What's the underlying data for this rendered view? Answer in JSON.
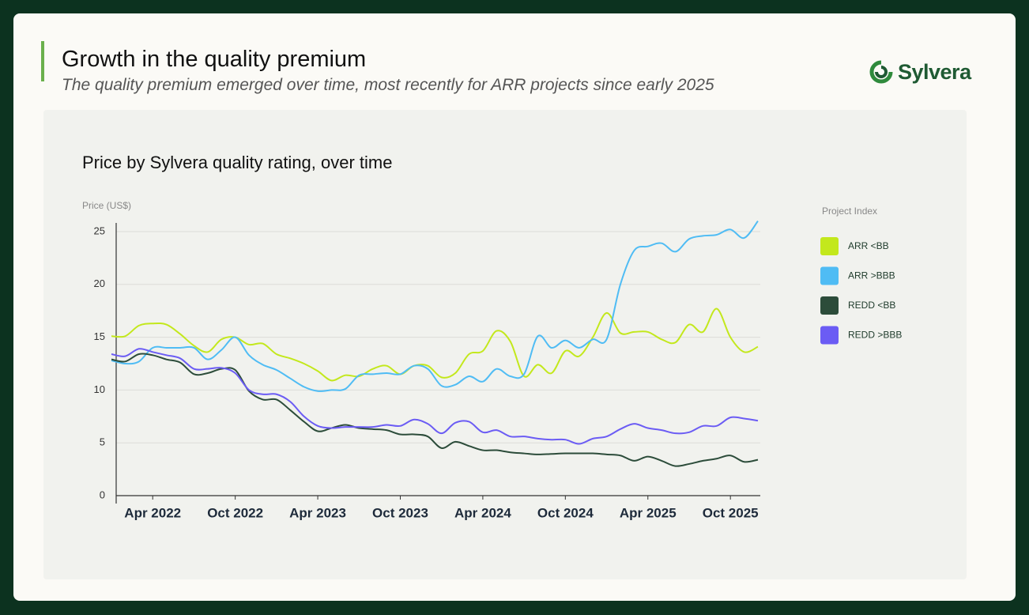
{
  "header": {
    "title": "Growth in the quality premium",
    "subtitle": "The quality premium emerged over time, most recently for ARR projects since early 2025",
    "logo": "Sylvera"
  },
  "chart_data": {
    "type": "line",
    "title": "Price by Sylvera quality rating, over time",
    "y_label": "Price (US$)",
    "legend_title": "Project Index",
    "x": [
      "2022-01",
      "2022-02",
      "2022-03",
      "2022-04",
      "2022-05",
      "2022-06",
      "2022-07",
      "2022-08",
      "2022-09",
      "2022-10",
      "2022-11",
      "2022-12",
      "2023-01",
      "2023-02",
      "2023-03",
      "2023-04",
      "2023-05",
      "2023-06",
      "2023-07",
      "2023-08",
      "2023-09",
      "2023-10",
      "2023-11",
      "2023-12",
      "2024-01",
      "2024-02",
      "2024-03",
      "2024-04",
      "2024-05",
      "2024-06",
      "2024-07",
      "2024-08",
      "2024-09",
      "2024-10",
      "2024-11",
      "2024-12",
      "2025-01",
      "2025-02",
      "2025-03",
      "2025-04",
      "2025-05",
      "2025-06",
      "2025-07",
      "2025-08",
      "2025-09",
      "2025-10",
      "2025-11",
      "2025-12"
    ],
    "xlim": [
      "2022-01",
      "2025-12"
    ],
    "xticks": [
      {
        "value": "2022-04",
        "label": "Apr 2022"
      },
      {
        "value": "2022-10",
        "label": "Oct 2022"
      },
      {
        "value": "2023-04",
        "label": "Apr 2023"
      },
      {
        "value": "2023-10",
        "label": "Oct 2023"
      },
      {
        "value": "2024-04",
        "label": "Apr 2024"
      },
      {
        "value": "2024-10",
        "label": "Oct 2024"
      },
      {
        "value": "2025-04",
        "label": "Apr 2025"
      },
      {
        "value": "2025-10",
        "label": "Oct 2025"
      }
    ],
    "ylim": [
      0,
      26
    ],
    "yticks": [
      0,
      5,
      10,
      15,
      20,
      25
    ],
    "grid": true,
    "series": [
      {
        "name": "ARR <BB",
        "color": "#c3e81c",
        "values": [
          15.1,
          15.1,
          16.1,
          16.3,
          16.2,
          15.3,
          14.2,
          13.6,
          14.8,
          15.0,
          14.3,
          14.4,
          13.4,
          13.0,
          12.5,
          11.8,
          10.9,
          11.4,
          11.3,
          12.0,
          12.3,
          11.5,
          12.3,
          12.3,
          11.2,
          11.6,
          13.4,
          13.7,
          15.6,
          14.6,
          11.3,
          12.4,
          11.6,
          13.7,
          13.2,
          15.0,
          17.3,
          15.4,
          15.5,
          15.5,
          14.8,
          14.5,
          16.2,
          15.5,
          17.7,
          15.0,
          13.6,
          14.1
        ]
      },
      {
        "name": "ARR >BBB",
        "color": "#4fbcf4",
        "values": [
          12.8,
          12.5,
          12.7,
          14.0,
          14.0,
          14.0,
          14.0,
          12.9,
          13.8,
          15.0,
          13.3,
          12.4,
          11.9,
          11.1,
          10.3,
          9.9,
          10.0,
          10.1,
          11.4,
          11.5,
          11.6,
          11.5,
          12.3,
          12.0,
          10.4,
          10.5,
          11.3,
          10.8,
          12.0,
          11.3,
          11.5,
          15.1,
          14.0,
          14.7,
          14.0,
          14.8,
          14.8,
          20.0,
          23.2,
          23.6,
          23.9,
          23.1,
          24.3,
          24.6,
          24.7,
          25.2,
          24.4,
          26.0
        ]
      },
      {
        "name": "REDD <BB",
        "color": "#2c4c3a",
        "values": [
          12.9,
          12.7,
          13.4,
          13.3,
          12.9,
          12.6,
          11.5,
          11.6,
          12.0,
          11.9,
          9.9,
          9.1,
          9.1,
          8.1,
          7.0,
          6.1,
          6.4,
          6.7,
          6.4,
          6.3,
          6.2,
          5.8,
          5.8,
          5.6,
          4.5,
          5.1,
          4.7,
          4.3,
          4.3,
          4.1,
          4.0,
          3.9,
          3.95,
          4.0,
          4.0,
          4.0,
          3.9,
          3.8,
          3.3,
          3.7,
          3.3,
          2.8,
          3.0,
          3.3,
          3.5,
          3.8,
          3.2,
          3.4
        ]
      },
      {
        "name": "REDD >BBB",
        "color": "#6b5cf4",
        "values": [
          13.4,
          13.2,
          13.9,
          13.6,
          13.3,
          13.0,
          12.0,
          12.0,
          12.1,
          11.6,
          10.0,
          9.6,
          9.6,
          8.9,
          7.5,
          6.6,
          6.4,
          6.5,
          6.5,
          6.5,
          6.7,
          6.6,
          7.2,
          6.8,
          5.9,
          6.9,
          7.0,
          6.0,
          6.2,
          5.6,
          5.6,
          5.4,
          5.3,
          5.3,
          4.9,
          5.4,
          5.6,
          6.3,
          6.8,
          6.4,
          6.2,
          5.9,
          6.0,
          6.6,
          6.6,
          7.4,
          7.3,
          7.1
        ]
      }
    ]
  }
}
